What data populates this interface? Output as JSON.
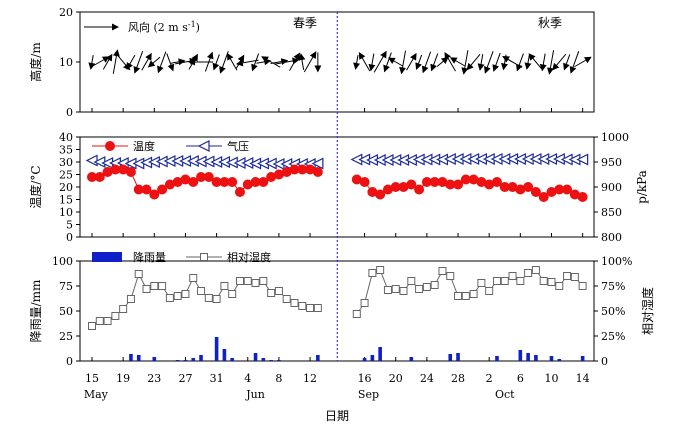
{
  "chart_data": [
    {
      "type": "quiver",
      "panel": "wind",
      "ylabel": "高度/m",
      "ylim": [
        0,
        20
      ],
      "yticks": [
        0,
        10,
        20
      ],
      "legend": {
        "label": "风向  (2 m s-1)",
        "text_main": "风向  (2 m s",
        "text_sup": "-1",
        "text_end": ")"
      },
      "season_labels": [
        "春季",
        "秋季"
      ],
      "spring_days": 30,
      "autumn_days": 30,
      "spring_dir_deg": [
        190,
        60,
        30,
        10,
        140,
        210,
        200,
        30,
        230,
        200,
        160,
        80,
        80,
        30,
        270,
        20,
        200,
        200,
        330,
        30,
        260,
        200,
        80,
        300,
        80,
        80,
        30,
        350,
        30,
        180
      ],
      "autumn_dir_deg": [
        190,
        330,
        190,
        30,
        200,
        300,
        190,
        30,
        200,
        200,
        200,
        50,
        330,
        300,
        190,
        220,
        190,
        200,
        200,
        190,
        300,
        200,
        190,
        320,
        190,
        190,
        220,
        200,
        200,
        60
      ]
    },
    {
      "type": "line",
      "panel": "temperature-pressure",
      "ylabel_left": "温度/°C",
      "ylabel_right": "p/kPa",
      "ylim_left": [
        0,
        40
      ],
      "yticks_left": [
        0,
        5,
        10,
        15,
        20,
        25,
        30,
        35,
        40
      ],
      "ylim_right": [
        800,
        1000
      ],
      "yticks_right": [
        800,
        850,
        900,
        950,
        1000
      ],
      "series": [
        {
          "name": "温度",
          "spring": [
            24,
            24,
            26,
            27,
            27,
            26,
            19,
            19,
            17,
            19,
            21,
            22,
            23,
            22,
            24,
            24,
            22,
            22,
            22,
            18,
            21,
            22,
            22,
            24,
            25,
            26,
            27,
            27,
            27,
            26
          ],
          "autumn": [
            23,
            22,
            18,
            17,
            19,
            20,
            20,
            21,
            19,
            22,
            22,
            22,
            21,
            21,
            23,
            23,
            22,
            21,
            22,
            20,
            20,
            19,
            20,
            18,
            16,
            18,
            19,
            19,
            17,
            16
          ]
        },
        {
          "name": "气压",
          "spring": [
            953,
            950,
            948,
            948,
            948,
            947,
            947,
            949,
            950,
            951,
            952,
            952,
            952,
            952,
            951,
            951,
            950,
            950,
            949,
            948,
            948,
            947,
            947,
            947,
            946,
            946,
            946,
            946,
            946,
            947
          ],
          "autumn": [
            955,
            955,
            954,
            954,
            954,
            954,
            954,
            954,
            955,
            955,
            955,
            955,
            956,
            956,
            956,
            956,
            956,
            956,
            956,
            956,
            956,
            956,
            956,
            956,
            956,
            956,
            956,
            955,
            955,
            955
          ]
        }
      ],
      "legend": [
        "温度",
        "气压"
      ]
    },
    {
      "type": "bar+line",
      "panel": "precipitation-humidity",
      "ylabel_left": "降雨量/mm",
      "ylabel_right": "相对湿度",
      "ylim_left": [
        0,
        100
      ],
      "yticks_left": [
        0,
        25,
        50,
        75,
        100
      ],
      "ylim_right": [
        0,
        100
      ],
      "yticks_right": [
        "0",
        "25%",
        "50%",
        "75%",
        "100%"
      ],
      "series": [
        {
          "name": "降雨量",
          "spring": [
            0,
            0,
            0,
            0,
            0,
            7,
            6,
            0,
            4,
            0,
            0,
            1,
            1,
            3,
            6,
            0,
            24,
            12,
            3,
            0,
            0,
            8,
            3,
            1,
            1,
            0,
            0,
            0,
            0,
            6
          ],
          "autumn": [
            0,
            3,
            6,
            14,
            0,
            0,
            0,
            4,
            0,
            0,
            0,
            0,
            7,
            8,
            0,
            0,
            0,
            0,
            5,
            0,
            0,
            11,
            8,
            6,
            0,
            5,
            2,
            0,
            0,
            5
          ]
        },
        {
          "name": "相对湿度",
          "spring": [
            35,
            40,
            40,
            45,
            52,
            62,
            87,
            72,
            75,
            75,
            63,
            65,
            67,
            83,
            70,
            63,
            62,
            75,
            67,
            80,
            80,
            78,
            80,
            68,
            70,
            62,
            58,
            55,
            53,
            53
          ],
          "autumn": [
            47,
            58,
            88,
            91,
            71,
            72,
            70,
            80,
            72,
            74,
            76,
            90,
            85,
            65,
            65,
            67,
            78,
            70,
            80,
            80,
            85,
            80,
            88,
            91,
            80,
            79,
            75,
            85,
            84,
            75
          ]
        }
      ],
      "legend": [
        "降雨量",
        "相对湿度"
      ]
    }
  ],
  "x_axis": {
    "label": "日期",
    "ticks": [
      {
        "label": "15",
        "slot": 0
      },
      {
        "label": "19",
        "slot": 4
      },
      {
        "label": "23",
        "slot": 8
      },
      {
        "label": "27",
        "slot": 12
      },
      {
        "label": "31",
        "slot": 16
      },
      {
        "label": "4",
        "slot": 20
      },
      {
        "label": "8",
        "slot": 24
      },
      {
        "label": "12",
        "slot": 28
      },
      {
        "label": "16",
        "slot": 35
      },
      {
        "label": "20",
        "slot": 39
      },
      {
        "label": "24",
        "slot": 43
      },
      {
        "label": "28",
        "slot": 47
      },
      {
        "label": "2",
        "slot": 51
      },
      {
        "label": "6",
        "slot": 55
      },
      {
        "label": "10",
        "slot": 59
      },
      {
        "label": "14",
        "slot": 63
      }
    ],
    "months": [
      {
        "label": "May",
        "slot": 0.5
      },
      {
        "label": "Jun",
        "slot": 21
      },
      {
        "label": "Sep",
        "slot": 35.5
      },
      {
        "label": "Oct",
        "slot": 53
      }
    ],
    "divider_slot": 31.5
  },
  "colors": {
    "temperature": "#ee1111",
    "pressure": "#1a2a9a",
    "precip": "#1020c8",
    "humidity": "#666666",
    "divider": "#3333dd"
  }
}
